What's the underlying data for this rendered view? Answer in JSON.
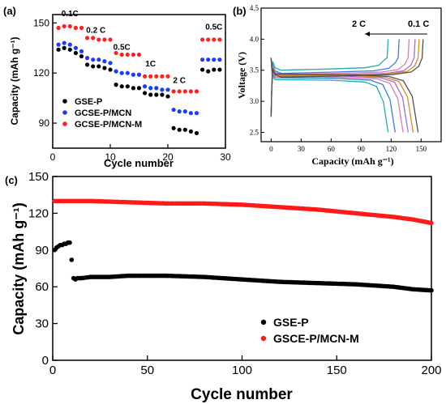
{
  "chart_data": [
    {
      "panel_label": "(a)",
      "type": "scatter",
      "xlabel": "Cycle number",
      "ylabel": "Capacity (mAh g⁻¹)",
      "xlim": [
        0,
        30
      ],
      "ylim": [
        75,
        155
      ],
      "xticks": [
        "0",
        "10",
        "20",
        "30"
      ],
      "yticks": [
        "90",
        "120",
        "150"
      ],
      "legend_position": "lower-left",
      "rate_labels": [
        {
          "text": "0.1C",
          "x": 3,
          "y": 154
        },
        {
          "text": "0.2 C",
          "x": 7.5,
          "y": 144
        },
        {
          "text": "0.5C",
          "x": 12,
          "y": 134
        },
        {
          "text": "1C",
          "x": 17,
          "y": 124
        },
        {
          "text": "2 C",
          "x": 22,
          "y": 114
        },
        {
          "text": "0.5C",
          "x": 28,
          "y": 146
        }
      ],
      "x": [
        1,
        2,
        3,
        4,
        5,
        6,
        7,
        8,
        9,
        10,
        11,
        12,
        13,
        14,
        15,
        16,
        17,
        18,
        19,
        20,
        21,
        22,
        23,
        24,
        25,
        26,
        27,
        28,
        29
      ],
      "series": [
        {
          "name": "GSE-P",
          "color": "#000000",
          "values": [
            134,
            135,
            134,
            132,
            130,
            125,
            124,
            124,
            123,
            122,
            113,
            112,
            112,
            111,
            111,
            108,
            107,
            107,
            107,
            106,
            87,
            86,
            86,
            85,
            84,
            122,
            121,
            122,
            122
          ]
        },
        {
          "name": "GCSE-P/MCN",
          "color": "#1a3cff",
          "values": [
            137,
            138,
            137,
            135,
            133,
            129,
            128,
            128,
            127,
            126,
            121,
            120,
            120,
            119,
            119,
            112,
            111,
            111,
            110,
            110,
            98,
            97,
            97,
            96,
            96,
            128,
            128,
            128,
            128
          ]
        },
        {
          "name": "GCSE-P/MCN-M",
          "color": "#ff2020",
          "values": [
            147,
            148,
            148,
            147,
            147,
            141,
            141,
            140,
            140,
            140,
            132,
            131,
            131,
            131,
            131,
            118,
            118,
            118,
            118,
            118,
            109,
            109,
            109,
            109,
            109,
            140,
            140,
            140,
            140
          ]
        }
      ]
    },
    {
      "panel_label": "(b)",
      "type": "line",
      "xlabel": "Capacity (mAh g⁻¹)",
      "ylabel": "Voltage (V)",
      "xlim": [
        -10,
        170
      ],
      "ylim": [
        2.35,
        4.5
      ],
      "xticks": [
        "0",
        "30",
        "60",
        "90",
        "120",
        "150"
      ],
      "yticks": [
        "2.5",
        "3.0",
        "3.5",
        "4.0",
        "4.5"
      ],
      "annotation_left": "2 C",
      "annotation_right": "0.1 C",
      "series": [
        {
          "color": "#20b0a0",
          "charge_end": 117,
          "discharge_end": 117,
          "charge_plateau": 3.52,
          "discharge_plateau": 3.34
        },
        {
          "color": "#3a7de0",
          "charge_end": 128,
          "discharge_end": 124,
          "charge_plateau": 3.47,
          "discharge_plateau": 3.37
        },
        {
          "color": "#e07ab0",
          "charge_end": 138,
          "discharge_end": 132,
          "charge_plateau": 3.45,
          "discharge_plateau": 3.39
        },
        {
          "color": "#9a70d8",
          "charge_end": 144,
          "discharge_end": 137,
          "charge_plateau": 3.43,
          "discharge_plateau": 3.41
        },
        {
          "color": "#e08a20",
          "charge_end": 148,
          "discharge_end": 142,
          "charge_plateau": 3.42,
          "discharge_plateau": 3.42
        },
        {
          "color": "#505050",
          "charge_end": 152,
          "discharge_end": 147,
          "charge_plateau": 3.41,
          "discharge_plateau": 3.43
        }
      ]
    },
    {
      "panel_label": "(c)",
      "type": "scatter",
      "xlabel": "Cycle number",
      "ylabel": "Capacity (mAh g⁻¹)",
      "xlim": [
        0,
        200
      ],
      "ylim": [
        0,
        150
      ],
      "xticks": [
        "0",
        "50",
        "100",
        "150",
        "200"
      ],
      "yticks": [
        "0",
        "30",
        "60",
        "90",
        "120",
        "150"
      ],
      "legend_position": "lower-right",
      "series": [
        {
          "name": "GSE-P",
          "color": "#000000",
          "anchors_x": [
            1,
            2,
            3,
            4,
            5,
            6,
            7,
            8,
            9,
            10,
            11,
            12,
            13,
            15,
            20,
            30,
            40,
            50,
            60,
            80,
            100,
            120,
            140,
            160,
            180,
            190,
            200
          ],
          "anchors_y": [
            90,
            92,
            93,
            94,
            94,
            95,
            95,
            96,
            96,
            82,
            67,
            66,
            67,
            67,
            68,
            68,
            69,
            69,
            69,
            68,
            66,
            64,
            63,
            62,
            60,
            58,
            57
          ]
        },
        {
          "name": "GSCE-P/MCN-M",
          "color": "#ff1a1a",
          "anchors_x": [
            1,
            10,
            20,
            40,
            60,
            80,
            100,
            120,
            140,
            160,
            180,
            190,
            200
          ],
          "anchors_y": [
            130,
            130,
            130,
            129,
            128,
            128,
            127,
            125,
            123,
            120,
            117,
            115,
            112
          ]
        }
      ]
    }
  ]
}
